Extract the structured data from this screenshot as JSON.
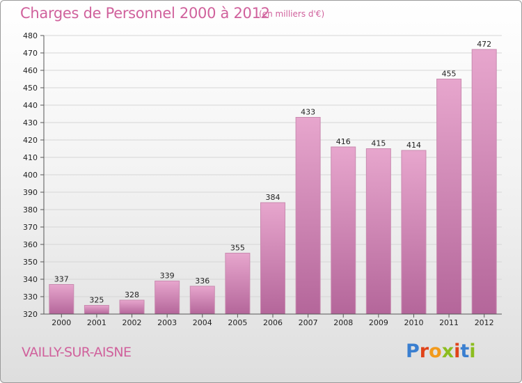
{
  "header": {
    "title": "Charges de Personnel 2000 à 2012",
    "subtitle": "(en milliers d'€)"
  },
  "footer": {
    "commune": "VAILLY-SUR-AISNE",
    "logo_text": "Proxiti",
    "logo_colors": [
      "#3a7fd0",
      "#e0431a",
      "#f29a1c",
      "#8cbd1f",
      "#e0431a",
      "#3a7fd0",
      "#8cbd1f"
    ]
  },
  "colors": {
    "title": "#d0619c",
    "bar_top": "#e7a6cd",
    "bar_bottom": "#b4669a",
    "bar_edge": "#c98bb0"
  },
  "chart_data": {
    "type": "bar",
    "title": "Charges de Personnel 2000 à 2012",
    "subtitle": "(en milliers d'€)",
    "xlabel": "",
    "ylabel": "",
    "categories": [
      "2000",
      "2001",
      "2002",
      "2003",
      "2004",
      "2005",
      "2006",
      "2007",
      "2008",
      "2009",
      "2010",
      "2011",
      "2012"
    ],
    "values": [
      337,
      325,
      328,
      339,
      336,
      355,
      384,
      433,
      416,
      415,
      414,
      455,
      472
    ],
    "ylim": [
      320,
      480
    ],
    "yticks": [
      320,
      330,
      340,
      350,
      360,
      370,
      380,
      390,
      400,
      410,
      420,
      430,
      440,
      450,
      460,
      470,
      480
    ],
    "grid": true,
    "legend": "none"
  }
}
